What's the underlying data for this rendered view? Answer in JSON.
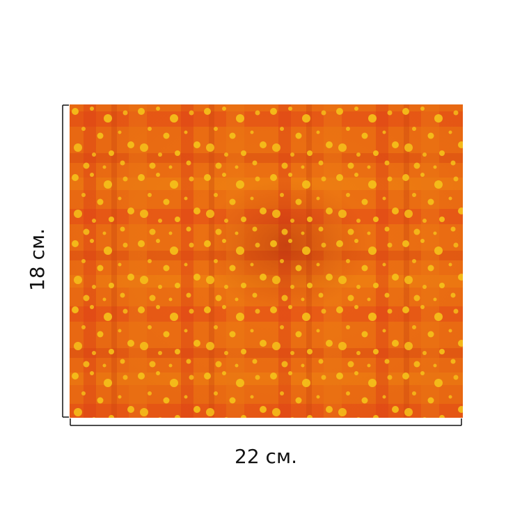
{
  "dimensions": {
    "height": "18 см.",
    "width": "22 см."
  }
}
